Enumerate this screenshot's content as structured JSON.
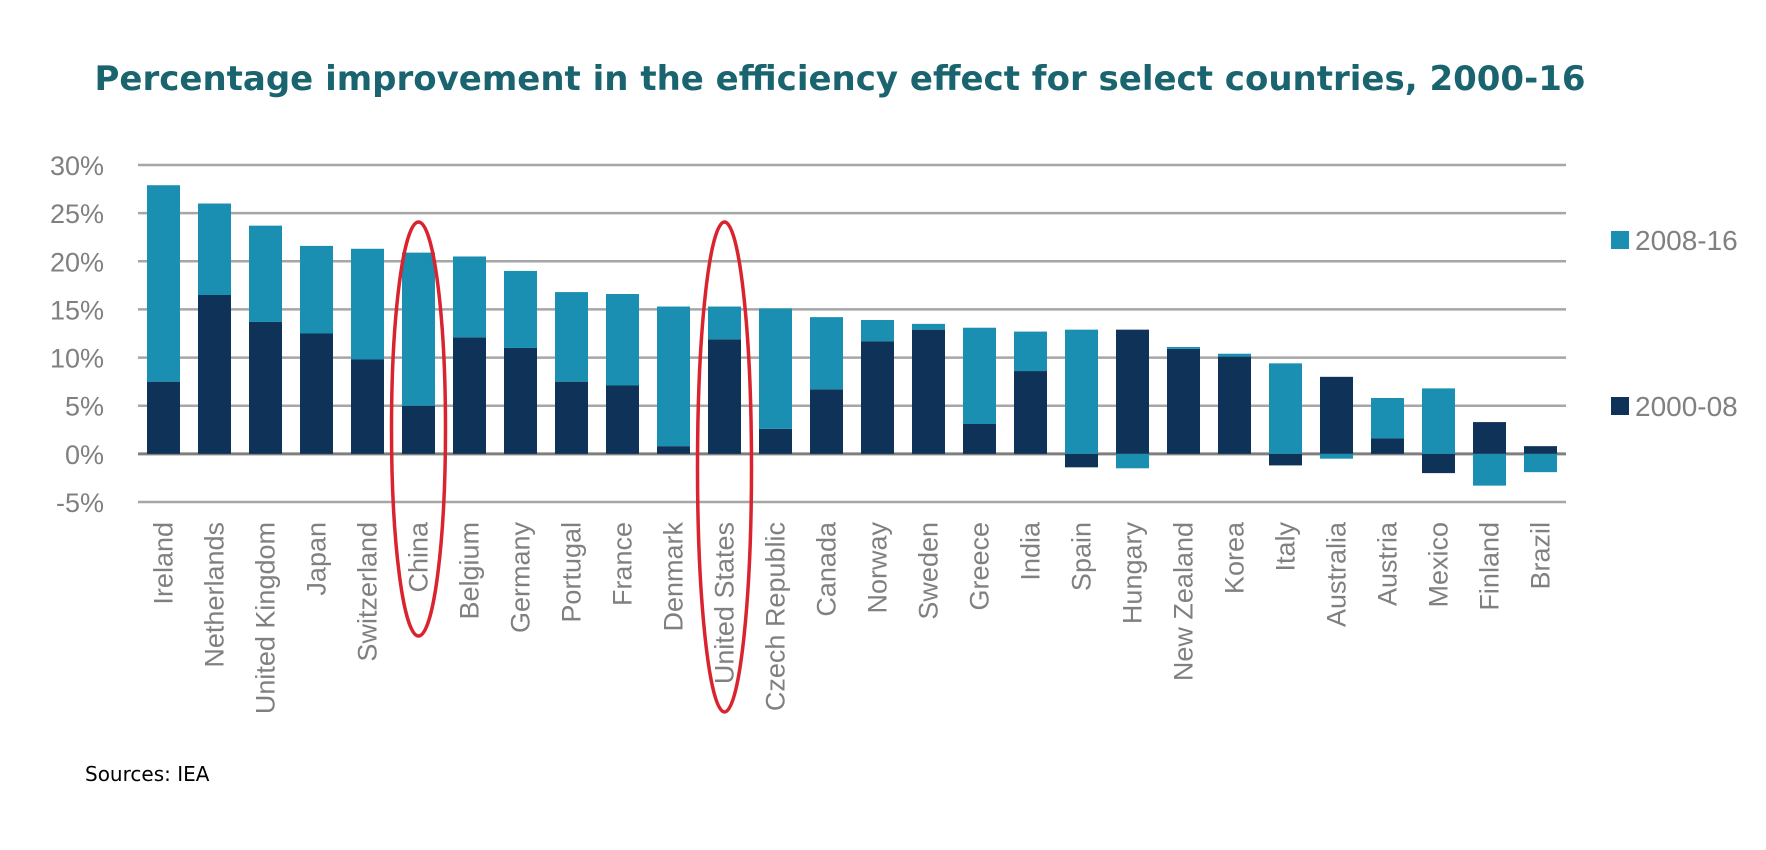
{
  "colors": {
    "title": "#1a6470",
    "series_2008_16": "#1a8fb1",
    "series_2000_08": "#0f3358",
    "gridline": "#a6a6a6",
    "zero_line": "#7f7f7f",
    "axis_text": "#808080",
    "highlight_ellipse": "#d9232e",
    "source_text": "#000000"
  },
  "source": "Sources: IEA",
  "chart_data": {
    "type": "bar",
    "stacked": true,
    "title": "Percentage improvement in the efficiency effect for select countries, 2000-16",
    "xlabel": "",
    "ylabel": "",
    "ylim": [
      -5,
      30
    ],
    "yticks": [
      {
        "value": 30,
        "label": "30%"
      },
      {
        "value": 25,
        "label": "25%"
      },
      {
        "value": 20,
        "label": "20%"
      },
      {
        "value": 15,
        "label": "15%"
      },
      {
        "value": 10,
        "label": "10%"
      },
      {
        "value": 5,
        "label": "5%"
      },
      {
        "value": 0,
        "label": "0%"
      },
      {
        "value": -5,
        "label": "-5%"
      }
    ],
    "grid": true,
    "legend_position": "right",
    "categories": [
      "Ireland",
      "Netherlands",
      "United Kingdom",
      "Japan",
      "Switzerland",
      "China",
      "Belgium",
      "Germany",
      "Portugal",
      "France",
      "Denmark",
      "United States",
      "Czech Republic",
      "Canada",
      "Norway",
      "Sweden",
      "Greece",
      "India",
      "Spain",
      "Hungary",
      "New Zealand",
      "Korea",
      "Italy",
      "Australia",
      "Austria",
      "Mexico",
      "Finland",
      "Brazil"
    ],
    "series": [
      {
        "name": "2000-08",
        "values": [
          7.5,
          16.5,
          13.7,
          12.5,
          9.8,
          5.0,
          12.1,
          11.0,
          7.5,
          7.1,
          0.8,
          11.9,
          2.6,
          6.7,
          11.7,
          12.9,
          3.1,
          8.6,
          -1.4,
          12.9,
          10.9,
          10.1,
          -1.2,
          8.0,
          1.6,
          -2.0,
          3.3,
          0.8
        ]
      },
      {
        "name": "2008-16",
        "values": [
          20.4,
          9.5,
          10.0,
          9.1,
          11.5,
          15.9,
          8.4,
          8.0,
          9.3,
          9.5,
          14.5,
          3.4,
          12.5,
          7.5,
          2.2,
          0.6,
          10.0,
          4.1,
          12.9,
          -1.5,
          0.2,
          0.3,
          9.4,
          -0.5,
          4.2,
          6.8,
          -3.3,
          -1.9
        ]
      }
    ],
    "highlighted": [
      "China",
      "United States"
    ]
  }
}
